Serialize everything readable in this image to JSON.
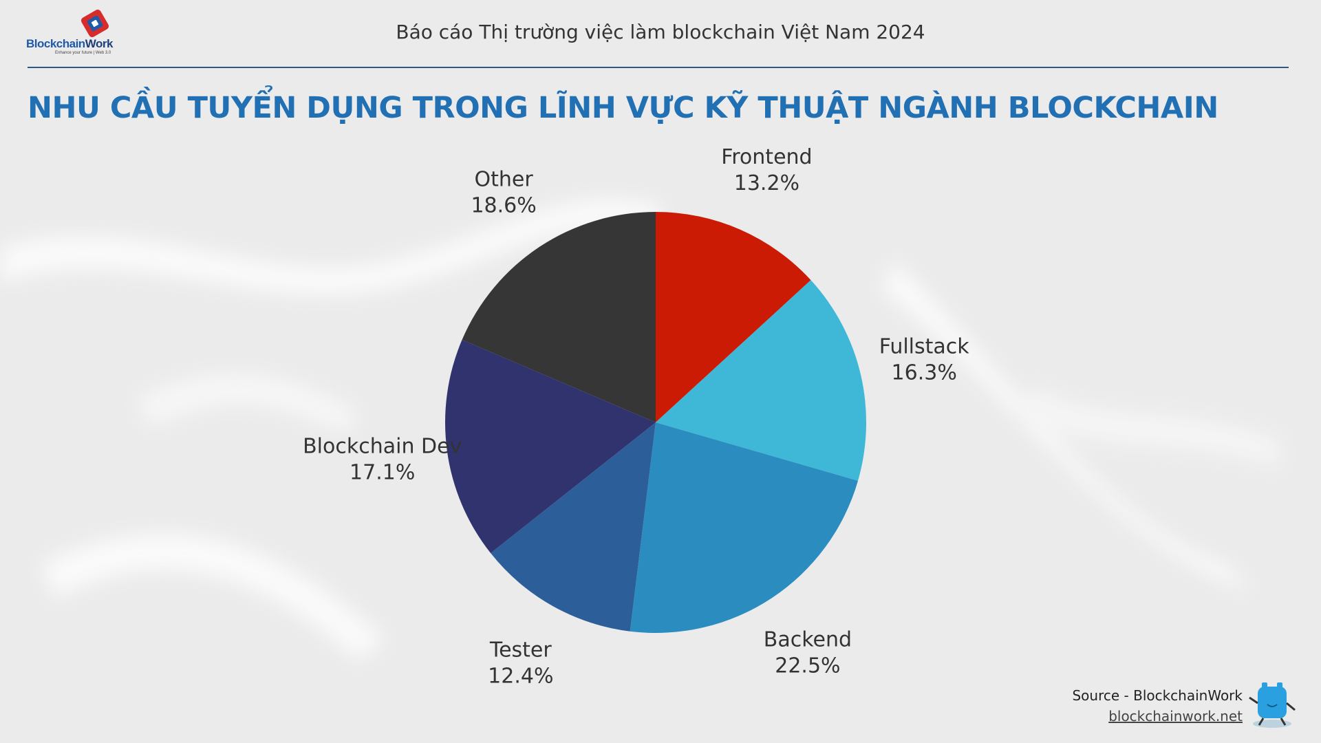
{
  "header": {
    "title": "Báo cáo Thị trường việc làm blockchain Việt Nam 2024",
    "logo_text_primary": "Blockchain",
    "logo_text_secondary": "Work",
    "logo_tagline": "Enhance your future | Web 3.0"
  },
  "page_title": "NHU CẦU TUYỂN DỤNG TRONG LĨNH VỰC KỸ THUẬT NGÀNH BLOCKCHAIN",
  "chart_data": {
    "type": "pie",
    "title": "",
    "start_angle": "12 o'clock",
    "direction": "clockwise",
    "slices": [
      {
        "label": "Frontend",
        "value": 13.2,
        "value_label": "13.2%",
        "color": "#cc1b05"
      },
      {
        "label": "Fullstack",
        "value": 16.3,
        "value_label": "16.3%",
        "color": "#3fb8d8"
      },
      {
        "label": "Backend",
        "value": 22.5,
        "value_label": "22.5%",
        "color": "#2a8cbf"
      },
      {
        "label": "Tester",
        "value": 12.4,
        "value_label": "12.4%",
        "color": "#2c5f99"
      },
      {
        "label": "Blockchain Dev",
        "value": 17.1,
        "value_label": "17.1%",
        "color": "#30336e"
      },
      {
        "label": "Other",
        "value": 18.6,
        "value_label": "18.6%",
        "color": "#363636"
      }
    ]
  },
  "footer": {
    "source_text": "Source - BlockchainWork",
    "source_link": "blockchainwork.net"
  },
  "colors": {
    "accent": "#2270b4",
    "rule": "#2a5a85",
    "background": "#ececed"
  }
}
